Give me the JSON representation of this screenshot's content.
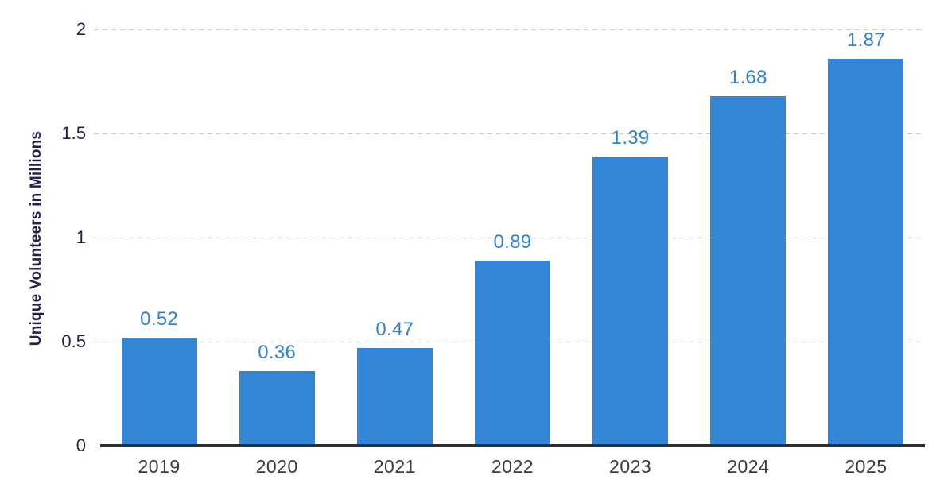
{
  "chart_data": {
    "type": "bar",
    "title": "",
    "categories": [
      "2019",
      "2020",
      "2021",
      "2022",
      "2023",
      "2024",
      "2025"
    ],
    "values": [
      0.52,
      0.36,
      0.47,
      0.89,
      1.39,
      1.68,
      1.87
    ],
    "value_labels": [
      "0.52",
      "0.36",
      "0.47",
      "0.89",
      "1.39",
      "1.68",
      "1.87"
    ],
    "xlabel": "",
    "ylabel": "Unique Volunteers in Millions",
    "ylim": [
      0,
      2
    ],
    "yticks": [
      0,
      0.5,
      1,
      1.5,
      2
    ],
    "ytick_labels": [
      "0",
      "0.5",
      "1",
      "1.5",
      "2"
    ],
    "grid": "horizontal-dashed",
    "legend": "none",
    "colors": {
      "bar": "#3385d6",
      "value_label": "#2f82d6",
      "tick_label": "#241f50",
      "x_label": "#3b3b3b",
      "axis_line": "#2e2e2e",
      "gridline": "#cccccc",
      "background": "#ffffff"
    }
  }
}
